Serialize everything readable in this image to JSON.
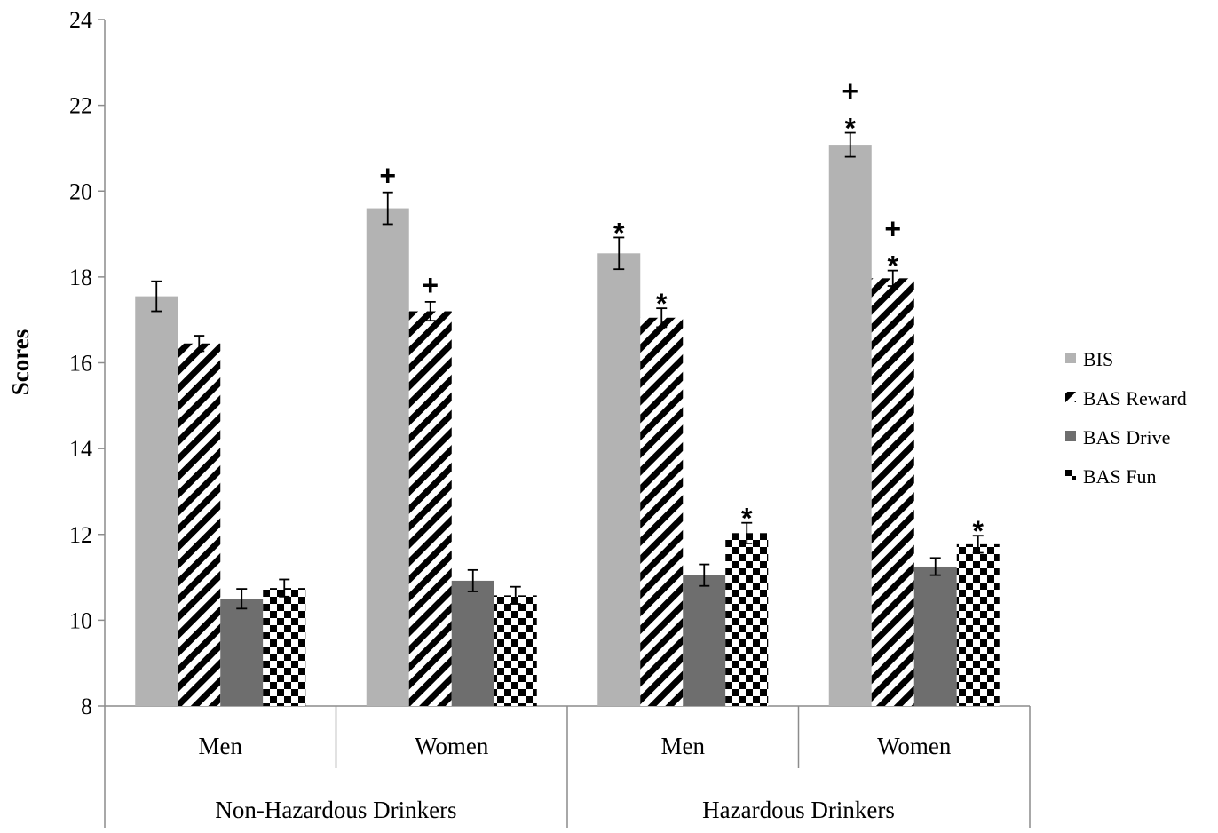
{
  "chart_data": {
    "type": "bar",
    "title": "",
    "ylabel": "Scores",
    "xlabel": "",
    "ylim": [
      8,
      24
    ],
    "yticks": [
      8,
      10,
      12,
      14,
      16,
      18,
      20,
      22,
      24
    ],
    "grid": false,
    "legend_position": "right",
    "groups": [
      {
        "label": "Non-Hazardous Drinkers",
        "categories": [
          "Men",
          "Women"
        ]
      },
      {
        "label": "Hazardous Drinkers",
        "categories": [
          "Men",
          "Women"
        ]
      }
    ],
    "categories": [
      "Men",
      "Women",
      "Men",
      "Women"
    ],
    "series": [
      {
        "name": "BIS",
        "color": "#b3b3b3",
        "pattern": "solid-light",
        "values": [
          17.55,
          19.6,
          18.55,
          21.08
        ],
        "errors": [
          0.35,
          0.37,
          0.37,
          0.28
        ],
        "markers": [
          "",
          "+",
          "*",
          "+*"
        ]
      },
      {
        "name": "BAS Reward",
        "color": "#000000",
        "pattern": "diagonal-stripes",
        "values": [
          16.45,
          17.2,
          17.05,
          17.97
        ],
        "errors": [
          0.18,
          0.22,
          0.22,
          0.18
        ],
        "markers": [
          "",
          "+",
          "*",
          "+*"
        ]
      },
      {
        "name": "BAS Drive",
        "color": "#6e6e6e",
        "pattern": "solid-dark",
        "values": [
          10.5,
          10.92,
          11.05,
          11.25
        ],
        "errors": [
          0.23,
          0.25,
          0.25,
          0.2
        ],
        "markers": [
          "",
          "",
          "",
          ""
        ]
      },
      {
        "name": "BAS Fun",
        "color": "#000000",
        "pattern": "checkerboard",
        "values": [
          10.75,
          10.58,
          12.03,
          11.77
        ],
        "errors": [
          0.2,
          0.2,
          0.24,
          0.2
        ],
        "markers": [
          "",
          "",
          "*",
          "*"
        ]
      }
    ]
  }
}
